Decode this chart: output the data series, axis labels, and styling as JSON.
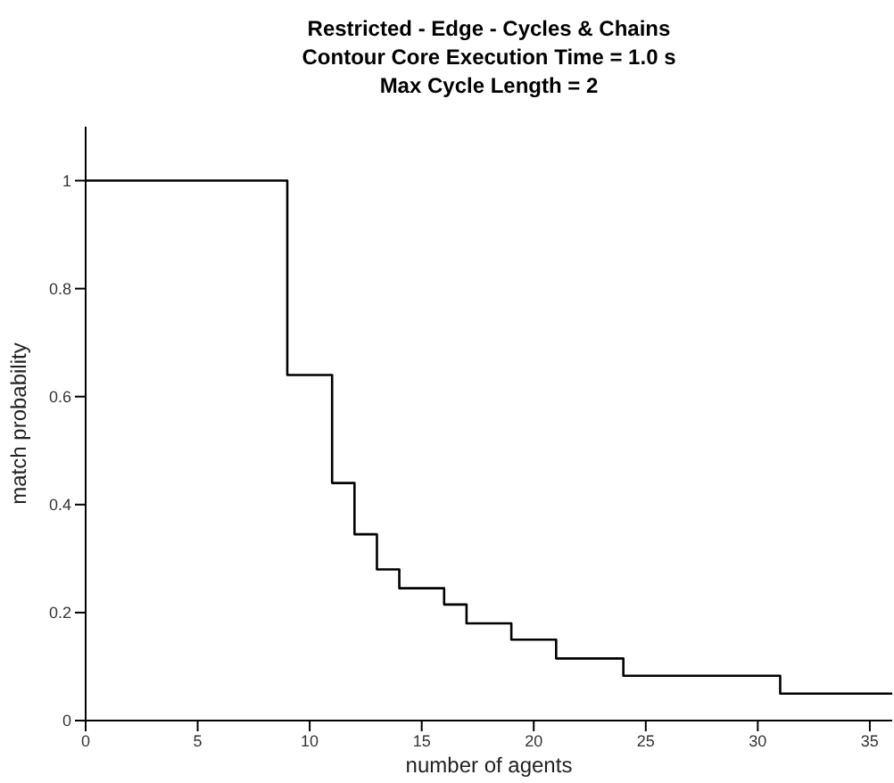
{
  "chart_data": {
    "type": "step",
    "title": "Restricted - Edge - Cycles & Chains\nContour Core Execution Time = 1.0 s\nMax Cycle Length = 2",
    "xlabel": "number of agents",
    "ylabel": "match probability",
    "x": [
      0,
      9,
      11,
      12,
      13,
      14,
      16,
      17,
      19,
      21,
      24,
      31,
      36
    ],
    "series": [
      {
        "color": "#000000",
        "values": [
          1,
          0.64,
          0.44,
          0.345,
          0.28,
          0.245,
          0.215,
          0.18,
          0.15,
          0.115,
          0.083,
          0.05,
          0.05
        ]
      }
    ],
    "xlim": [
      0,
      36
    ],
    "xticks": [
      0,
      5,
      10,
      15,
      20,
      25,
      30,
      35
    ],
    "ylim": [
      0,
      1.1
    ],
    "yticks": [
      0,
      0.2,
      0.4,
      0.6,
      0.8,
      1
    ],
    "grid": false,
    "legend": false,
    "marker": "none",
    "line_style": "solid"
  }
}
